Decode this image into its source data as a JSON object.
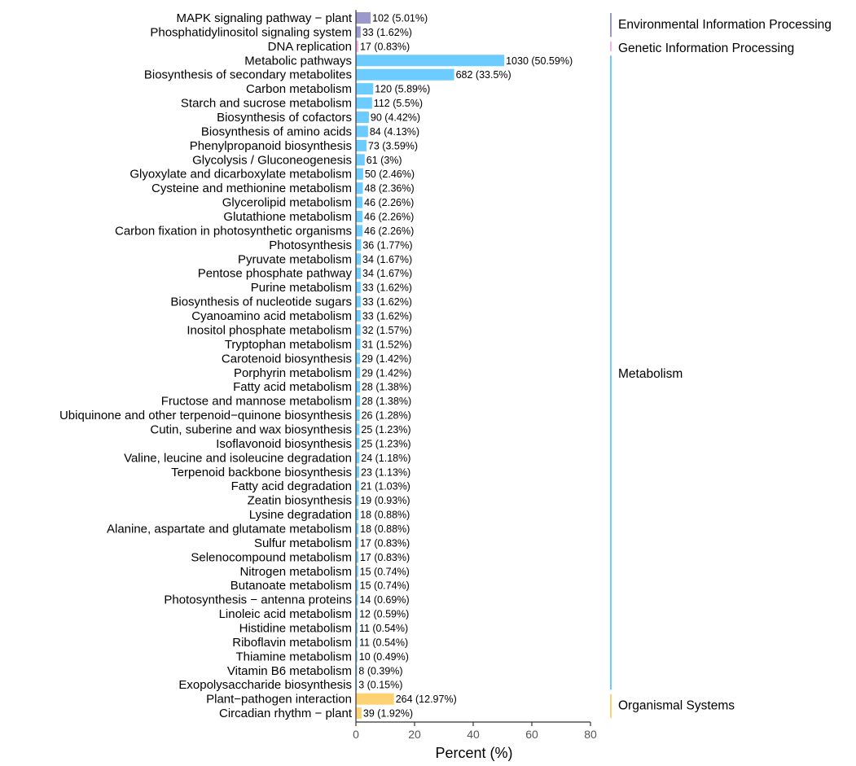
{
  "chart_data": {
    "type": "bar",
    "orientation": "horizontal",
    "xlabel": "Percent (%)",
    "ylabel": "",
    "xlim": [
      0,
      80
    ],
    "xticks": [
      0,
      20,
      40,
      60,
      80
    ],
    "grid": false,
    "colors": {
      "Environmental Information Processing": "#9b99cc",
      "Genetic Information Processing": "#f6b3e6",
      "Metabolism": "#6ccbff",
      "Organismal Systems": "#fdd273"
    },
    "groups": [
      {
        "name": "Environmental Information Processing",
        "color": "#9b99cc"
      },
      {
        "name": "Genetic Information Processing",
        "color": "#f6b3e6"
      },
      {
        "name": "Metabolism",
        "color": "#6ccbff"
      },
      {
        "name": "Organismal Systems",
        "color": "#fdd273"
      }
    ],
    "bars": [
      {
        "category": "MAPK signaling pathway − plant",
        "count": 102,
        "percent": 5.01,
        "label": "102 (5.01%)",
        "group": "Environmental Information Processing"
      },
      {
        "category": "Phosphatidylinositol signaling system",
        "count": 33,
        "percent": 1.62,
        "label": "33 (1.62%)",
        "group": "Environmental Information Processing"
      },
      {
        "category": "DNA replication",
        "count": 17,
        "percent": 0.83,
        "label": "17 (0.83%)",
        "group": "Genetic Information Processing"
      },
      {
        "category": "Metabolic pathways",
        "count": 1030,
        "percent": 50.59,
        "label": "1030 (50.59%)",
        "group": "Metabolism"
      },
      {
        "category": "Biosynthesis of secondary metabolites",
        "count": 682,
        "percent": 33.5,
        "label": "682 (33.5%)",
        "group": "Metabolism"
      },
      {
        "category": "Carbon metabolism",
        "count": 120,
        "percent": 5.89,
        "label": "120 (5.89%)",
        "group": "Metabolism"
      },
      {
        "category": "Starch and sucrose metabolism",
        "count": 112,
        "percent": 5.5,
        "label": "112 (5.5%)",
        "group": "Metabolism"
      },
      {
        "category": "Biosynthesis of cofactors",
        "count": 90,
        "percent": 4.42,
        "label": "90 (4.42%)",
        "group": "Metabolism"
      },
      {
        "category": "Biosynthesis of amino acids",
        "count": 84,
        "percent": 4.13,
        "label": "84 (4.13%)",
        "group": "Metabolism"
      },
      {
        "category": "Phenylpropanoid biosynthesis",
        "count": 73,
        "percent": 3.59,
        "label": "73 (3.59%)",
        "group": "Metabolism"
      },
      {
        "category": "Glycolysis / Gluconeogenesis",
        "count": 61,
        "percent": 3,
        "label": "61 (3%)",
        "group": "Metabolism"
      },
      {
        "category": "Glyoxylate and dicarboxylate metabolism",
        "count": 50,
        "percent": 2.46,
        "label": "50 (2.46%)",
        "group": "Metabolism"
      },
      {
        "category": "Cysteine and methionine metabolism",
        "count": 48,
        "percent": 2.36,
        "label": "48 (2.36%)",
        "group": "Metabolism"
      },
      {
        "category": "Glycerolipid metabolism",
        "count": 46,
        "percent": 2.26,
        "label": "46 (2.26%)",
        "group": "Metabolism"
      },
      {
        "category": "Glutathione metabolism",
        "count": 46,
        "percent": 2.26,
        "label": "46 (2.26%)",
        "group": "Metabolism"
      },
      {
        "category": "Carbon fixation in photosynthetic organisms",
        "count": 46,
        "percent": 2.26,
        "label": "46 (2.26%)",
        "group": "Metabolism"
      },
      {
        "category": "Photosynthesis",
        "count": 36,
        "percent": 1.77,
        "label": "36 (1.77%)",
        "group": "Metabolism"
      },
      {
        "category": "Pyruvate metabolism",
        "count": 34,
        "percent": 1.67,
        "label": "34 (1.67%)",
        "group": "Metabolism"
      },
      {
        "category": "Pentose phosphate pathway",
        "count": 34,
        "percent": 1.67,
        "label": "34 (1.67%)",
        "group": "Metabolism"
      },
      {
        "category": "Purine metabolism",
        "count": 33,
        "percent": 1.62,
        "label": "33 (1.62%)",
        "group": "Metabolism"
      },
      {
        "category": "Biosynthesis of nucleotide sugars",
        "count": 33,
        "percent": 1.62,
        "label": "33 (1.62%)",
        "group": "Metabolism"
      },
      {
        "category": "Cyanoamino acid metabolism",
        "count": 33,
        "percent": 1.62,
        "label": "33 (1.62%)",
        "group": "Metabolism"
      },
      {
        "category": "Inositol phosphate metabolism",
        "count": 32,
        "percent": 1.57,
        "label": "32 (1.57%)",
        "group": "Metabolism"
      },
      {
        "category": "Tryptophan metabolism",
        "count": 31,
        "percent": 1.52,
        "label": "31 (1.52%)",
        "group": "Metabolism"
      },
      {
        "category": "Carotenoid biosynthesis",
        "count": 29,
        "percent": 1.42,
        "label": "29 (1.42%)",
        "group": "Metabolism"
      },
      {
        "category": "Porphyrin metabolism",
        "count": 29,
        "percent": 1.42,
        "label": "29 (1.42%)",
        "group": "Metabolism"
      },
      {
        "category": "Fatty acid metabolism",
        "count": 28,
        "percent": 1.38,
        "label": "28 (1.38%)",
        "group": "Metabolism"
      },
      {
        "category": "Fructose and mannose metabolism",
        "count": 28,
        "percent": 1.38,
        "label": "28 (1.38%)",
        "group": "Metabolism"
      },
      {
        "category": "Ubiquinone and other terpenoid−quinone biosynthesis",
        "count": 26,
        "percent": 1.28,
        "label": "26 (1.28%)",
        "group": "Metabolism"
      },
      {
        "category": "Cutin, suberine and wax biosynthesis",
        "count": 25,
        "percent": 1.23,
        "label": "25 (1.23%)",
        "group": "Metabolism"
      },
      {
        "category": "Isoflavonoid biosynthesis",
        "count": 25,
        "percent": 1.23,
        "label": "25 (1.23%)",
        "group": "Metabolism"
      },
      {
        "category": "Valine, leucine and isoleucine degradation",
        "count": 24,
        "percent": 1.18,
        "label": "24 (1.18%)",
        "group": "Metabolism"
      },
      {
        "category": "Terpenoid backbone biosynthesis",
        "count": 23,
        "percent": 1.13,
        "label": "23 (1.13%)",
        "group": "Metabolism"
      },
      {
        "category": "Fatty acid degradation",
        "count": 21,
        "percent": 1.03,
        "label": "21 (1.03%)",
        "group": "Metabolism"
      },
      {
        "category": "Zeatin biosynthesis",
        "count": 19,
        "percent": 0.93,
        "label": "19 (0.93%)",
        "group": "Metabolism"
      },
      {
        "category": "Lysine degradation",
        "count": 18,
        "percent": 0.88,
        "label": "18 (0.88%)",
        "group": "Metabolism"
      },
      {
        "category": "Alanine, aspartate and glutamate metabolism",
        "count": 18,
        "percent": 0.88,
        "label": "18 (0.88%)",
        "group": "Metabolism"
      },
      {
        "category": "Sulfur metabolism",
        "count": 17,
        "percent": 0.83,
        "label": "17 (0.83%)",
        "group": "Metabolism"
      },
      {
        "category": "Selenocompound metabolism",
        "count": 17,
        "percent": 0.83,
        "label": "17 (0.83%)",
        "group": "Metabolism"
      },
      {
        "category": "Nitrogen metabolism",
        "count": 15,
        "percent": 0.74,
        "label": "15 (0.74%)",
        "group": "Metabolism"
      },
      {
        "category": "Butanoate metabolism",
        "count": 15,
        "percent": 0.74,
        "label": "15 (0.74%)",
        "group": "Metabolism"
      },
      {
        "category": "Photosynthesis − antenna proteins",
        "count": 14,
        "percent": 0.69,
        "label": "14 (0.69%)",
        "group": "Metabolism"
      },
      {
        "category": "Linoleic acid metabolism",
        "count": 12,
        "percent": 0.59,
        "label": "12 (0.59%)",
        "group": "Metabolism"
      },
      {
        "category": "Histidine metabolism",
        "count": 11,
        "percent": 0.54,
        "label": "11 (0.54%)",
        "group": "Metabolism"
      },
      {
        "category": "Riboflavin metabolism",
        "count": 11,
        "percent": 0.54,
        "label": "11 (0.54%)",
        "group": "Metabolism"
      },
      {
        "category": "Thiamine metabolism",
        "count": 10,
        "percent": 0.49,
        "label": "10 (0.49%)",
        "group": "Metabolism"
      },
      {
        "category": "Vitamin B6 metabolism",
        "count": 8,
        "percent": 0.39,
        "label": "8 (0.39%)",
        "group": "Metabolism"
      },
      {
        "category": "Exopolysaccharide biosynthesis",
        "count": 3,
        "percent": 0.15,
        "label": "3 (0.15%)",
        "group": "Metabolism"
      },
      {
        "category": "Plant−pathogen interaction",
        "count": 264,
        "percent": 12.97,
        "label": "264 (12.97%)",
        "group": "Organismal Systems"
      },
      {
        "category": "Circadian rhythm − plant",
        "count": 39,
        "percent": 1.92,
        "label": "39 (1.92%)",
        "group": "Organismal Systems"
      }
    ]
  }
}
